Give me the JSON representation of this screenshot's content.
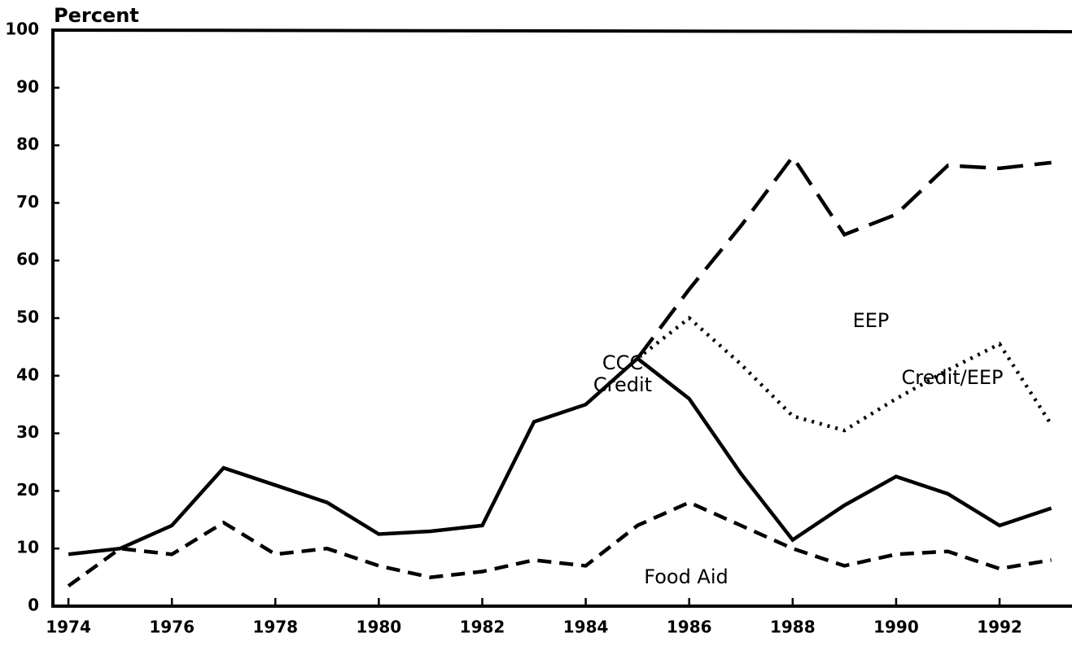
{
  "chart_data": {
    "type": "line",
    "y_label": "Percent",
    "x": [
      1974,
      1975,
      1976,
      1977,
      1978,
      1979,
      1980,
      1981,
      1982,
      1983,
      1984,
      1985,
      1986,
      1987,
      1988,
      1989,
      1990,
      1991,
      1992,
      1993
    ],
    "series": [
      {
        "name": "EEP",
        "color": "#000000",
        "style": "long-dash",
        "values": [
          null,
          null,
          null,
          null,
          null,
          null,
          null,
          null,
          null,
          null,
          null,
          43,
          55,
          66,
          78,
          64.5,
          68,
          76.5,
          76,
          77
        ]
      },
      {
        "name": "Credit/EEP",
        "color": "#000000",
        "style": "dotted",
        "values": [
          null,
          null,
          null,
          null,
          null,
          null,
          null,
          null,
          null,
          null,
          null,
          43,
          50,
          42,
          33,
          30.5,
          36,
          41,
          45.5,
          31.5
        ]
      },
      {
        "name": "CCC Credit",
        "color": "#000000",
        "style": "solid",
        "values": [
          9,
          10,
          14,
          24,
          21,
          18,
          12.5,
          13,
          14,
          32,
          35,
          43,
          36,
          23,
          11.5,
          17.5,
          22.5,
          19.5,
          14,
          17
        ]
      },
      {
        "name": "Food Aid",
        "color": "#000000",
        "style": "dashed",
        "values": [
          3.5,
          10,
          9,
          14.5,
          9,
          10,
          7,
          5,
          6,
          8,
          7,
          14,
          18,
          14,
          10,
          7,
          9,
          9.5,
          6.5,
          8
        ]
      }
    ],
    "xlim": [
      1973.7,
      1993.4
    ],
    "xticks": [
      1974,
      1976,
      1978,
      1980,
      1982,
      1984,
      1986,
      1988,
      1990,
      1992
    ],
    "ylim": [
      0,
      100
    ],
    "yticks": [
      0,
      10,
      20,
      30,
      40,
      50,
      60,
      70,
      80,
      90,
      100
    ],
    "grid": false
  }
}
